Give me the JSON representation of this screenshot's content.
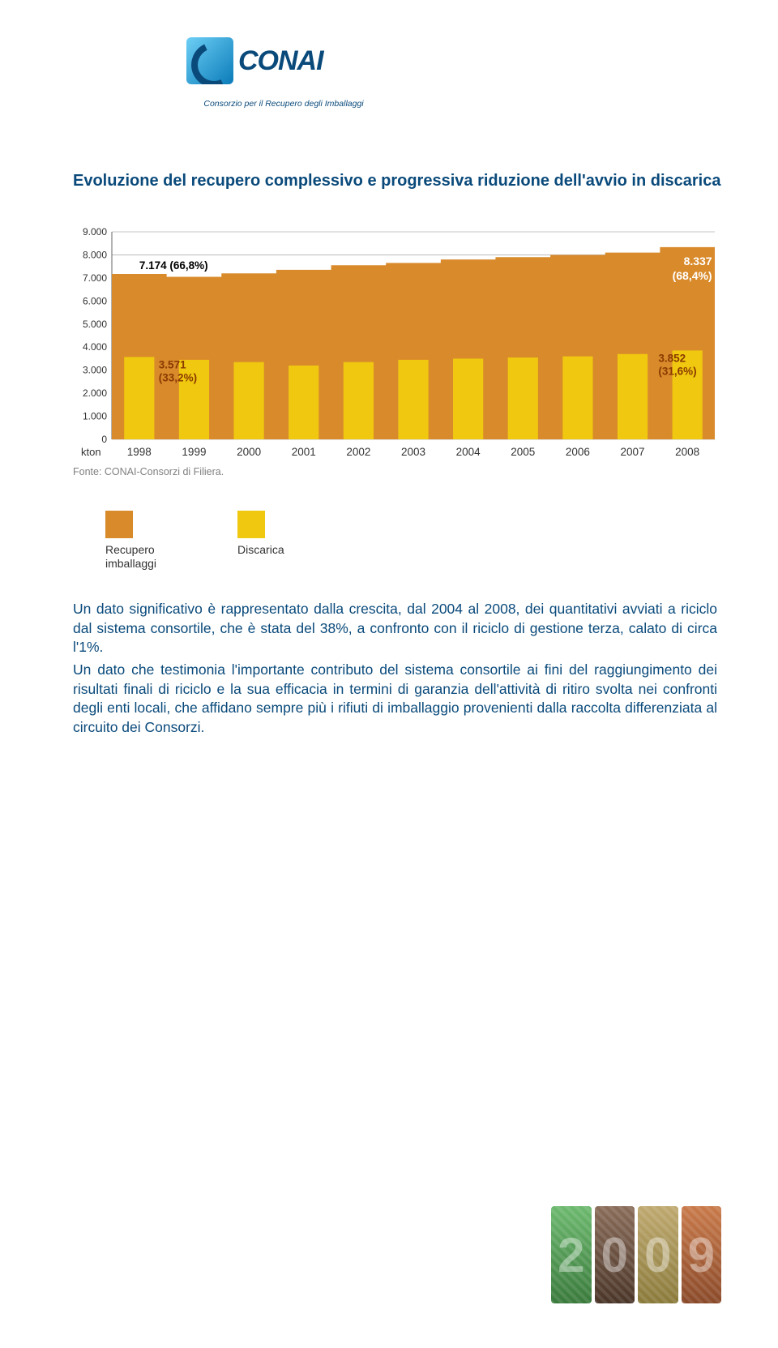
{
  "logo": {
    "brand": "CONAI",
    "tagline": "Consorzio per il Recupero degli Imballaggi"
  },
  "heading": "Evoluzione del recupero complessivo e progressiva riduzione dell'avvio in discarica",
  "chart": {
    "type": "area-with-bars",
    "ylabel": "kton",
    "years": [
      "1998",
      "1999",
      "2000",
      "2001",
      "2002",
      "2003",
      "2004",
      "2005",
      "2006",
      "2007",
      "2008"
    ],
    "recupero_values": [
      7174,
      7050,
      7200,
      7350,
      7550,
      7650,
      7800,
      7900,
      8000,
      8100,
      8337
    ],
    "discarica_values": [
      3571,
      3450,
      3350,
      3200,
      3350,
      3450,
      3500,
      3550,
      3600,
      3700,
      3852
    ],
    "ymax": 9000,
    "ytick_step_major": 1000,
    "gridline_color": "#b0b0b0",
    "area_color": "#d98a2b",
    "bar_color": "#f0c80f",
    "axis_text_color": "#333333",
    "annotation_color_a": "#333333",
    "annotation_color_b": "#8a3a00",
    "annotations": {
      "left_top": "7.174 (66,8%)",
      "left_bottom_v": "3.571",
      "left_bottom_p": "(33,2%)",
      "right_top_v": "8.337",
      "right_top_p": "(68,4%)",
      "right_bottom_v": "3.852",
      "right_bottom_p": "(31,6%)"
    }
  },
  "source": "Fonte: CONAI-Consorzi di Filiera.",
  "legend": {
    "recupero": "Recupero\nimballaggi",
    "discarica": "Discarica",
    "recupero_color": "#d98a2b",
    "discarica_color": "#f0c80f"
  },
  "body": {
    "p1": "Un dato significativo è rappresentato dalla crescita, dal 2004 al 2008, dei quantitativi avviati a riciclo dal sistema consortile, che è stata del 38%, a confronto con il riciclo di gestione terza, calato di circa l'1%.",
    "p2": "Un dato che testimonia l'importante contributo del sistema consortile ai fini del raggiungimento dei risultati finali di riciclo e la sua efficacia in termini di garanzia dell'attività di ritiro svolta nei confronti degli enti locali, che affidano sempre più i rifiuti di imballaggio provenienti dalla raccolta differenziata al circuito dei Consorzi."
  },
  "year_graphic": [
    "2",
    "0",
    "0",
    "9"
  ]
}
